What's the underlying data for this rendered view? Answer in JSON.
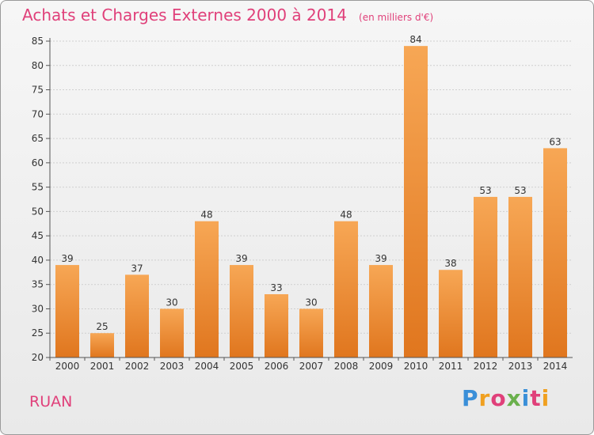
{
  "title": "Achats et Charges Externes 2000 à 2014",
  "subtitle": "(en milliers d'€)",
  "commune": "RUAN",
  "brand": "Proxiti",
  "colors": {
    "title": "#e0407a",
    "bar_top": "#f7a755",
    "bar_bottom": "#e0761e",
    "grid": "#cfcfcf",
    "axis": "#555555"
  },
  "chart_data": {
    "type": "bar",
    "categories": [
      "2000",
      "2001",
      "2002",
      "2003",
      "2004",
      "2005",
      "2006",
      "2007",
      "2008",
      "2009",
      "2010",
      "2011",
      "2012",
      "2013",
      "2014"
    ],
    "values": [
      39,
      25,
      37,
      30,
      48,
      39,
      33,
      30,
      48,
      39,
      84,
      38,
      53,
      53,
      63
    ],
    "ylim": [
      20,
      85
    ],
    "yticks": [
      20,
      25,
      30,
      35,
      40,
      45,
      50,
      55,
      60,
      65,
      70,
      75,
      80,
      85
    ],
    "grid": true,
    "xlabel": "",
    "ylabel": ""
  }
}
